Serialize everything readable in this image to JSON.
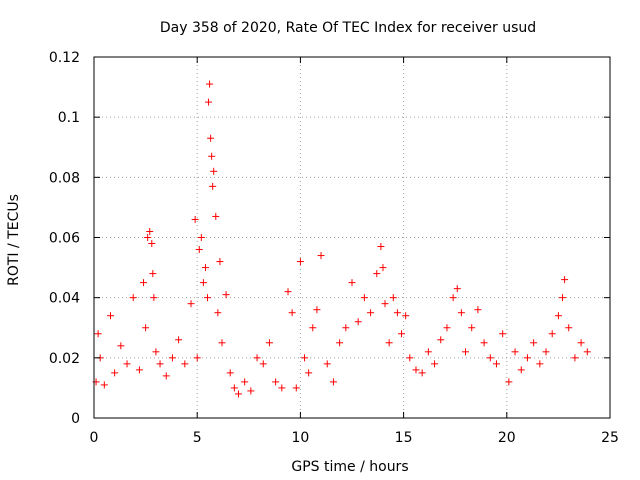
{
  "chart_data": {
    "type": "scatter",
    "title": "Day 358 of 2020, Rate Of TEC Index for receiver usud",
    "xlabel": "GPS time / hours",
    "ylabel": "ROTI / TECUs",
    "xlim": [
      0,
      25
    ],
    "ylim": [
      0,
      0.12
    ],
    "x_ticks": [
      0,
      5,
      10,
      15,
      20,
      25
    ],
    "y_ticks": [
      0,
      0.02,
      0.04,
      0.06,
      0.08,
      0.1,
      0.12
    ],
    "x_tick_labels": [
      "0",
      "5",
      "10",
      "15",
      "20",
      "25"
    ],
    "y_tick_labels": [
      "0",
      "0.02",
      "0.04",
      "0.06",
      "0.08",
      "0.1",
      "0.12"
    ],
    "grid": true,
    "marker": "+",
    "color": "#ff0000",
    "series": [
      {
        "x": [
          0.1,
          0.2,
          0.3,
          0.5,
          0.8,
          1.0,
          1.3,
          1.6,
          1.9,
          2.2,
          2.4,
          2.5,
          2.6,
          2.7,
          2.8,
          2.85,
          2.9,
          3.0,
          3.2,
          3.5,
          3.8,
          4.1,
          4.4,
          4.7,
          4.9,
          5.0,
          5.1,
          5.2,
          5.3,
          5.4,
          5.5,
          5.55,
          5.6,
          5.65,
          5.7,
          5.75,
          5.8,
          5.9,
          6.0,
          6.1,
          6.2,
          6.4,
          6.6,
          6.8,
          7.0,
          7.3,
          7.6,
          7.9,
          8.2,
          8.5,
          8.8,
          9.1,
          9.4,
          9.6,
          9.8,
          10.0,
          10.2,
          10.4,
          10.6,
          10.8,
          11.0,
          11.3,
          11.6,
          11.9,
          12.2,
          12.5,
          12.8,
          13.1,
          13.4,
          13.7,
          13.9,
          14.0,
          14.1,
          14.3,
          14.5,
          14.7,
          14.9,
          15.1,
          15.3,
          15.6,
          15.9,
          16.2,
          16.5,
          16.8,
          17.1,
          17.4,
          17.6,
          17.8,
          18.0,
          18.3,
          18.6,
          18.9,
          19.2,
          19.5,
          19.8,
          20.1,
          20.4,
          20.7,
          21.0,
          21.3,
          21.6,
          21.9,
          22.2,
          22.5,
          22.7,
          22.8,
          23.0,
          23.3,
          23.6,
          23.9
        ],
        "y": [
          0.012,
          0.028,
          0.02,
          0.011,
          0.034,
          0.015,
          0.024,
          0.018,
          0.04,
          0.016,
          0.045,
          0.03,
          0.06,
          0.062,
          0.058,
          0.048,
          0.04,
          0.022,
          0.018,
          0.014,
          0.02,
          0.026,
          0.018,
          0.038,
          0.066,
          0.02,
          0.056,
          0.06,
          0.045,
          0.05,
          0.04,
          0.105,
          0.111,
          0.093,
          0.087,
          0.077,
          0.082,
          0.067,
          0.035,
          0.052,
          0.025,
          0.041,
          0.015,
          0.01,
          0.008,
          0.012,
          0.009,
          0.02,
          0.018,
          0.025,
          0.012,
          0.01,
          0.042,
          0.035,
          0.01,
          0.052,
          0.02,
          0.015,
          0.03,
          0.036,
          0.054,
          0.018,
          0.012,
          0.025,
          0.03,
          0.045,
          0.032,
          0.04,
          0.035,
          0.048,
          0.057,
          0.05,
          0.038,
          0.025,
          0.04,
          0.035,
          0.028,
          0.034,
          0.02,
          0.016,
          0.015,
          0.022,
          0.018,
          0.026,
          0.03,
          0.04,
          0.043,
          0.035,
          0.022,
          0.03,
          0.036,
          0.025,
          0.02,
          0.018,
          0.028,
          0.012,
          0.022,
          0.016,
          0.02,
          0.025,
          0.018,
          0.022,
          0.028,
          0.034,
          0.04,
          0.046,
          0.03,
          0.02,
          0.025,
          0.022
        ]
      }
    ]
  }
}
